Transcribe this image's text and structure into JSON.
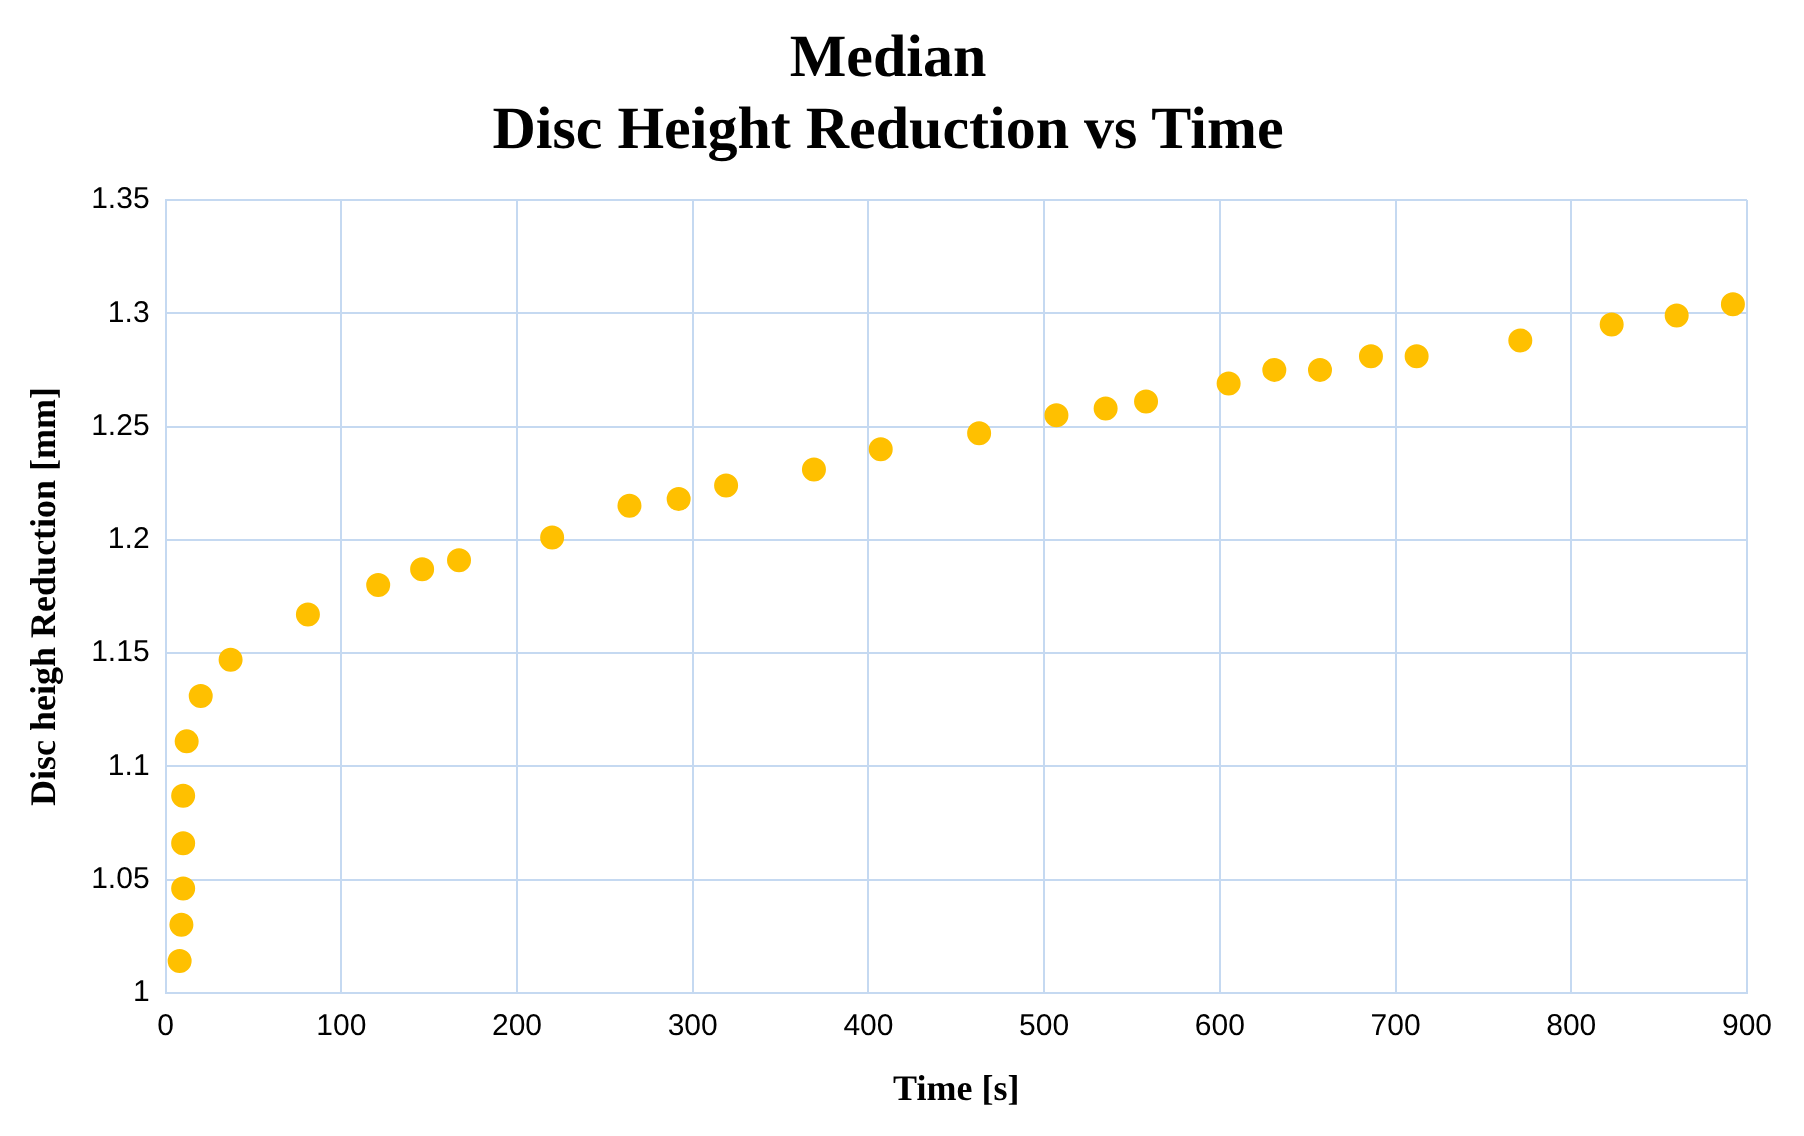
{
  "chart_data": {
    "type": "scatter",
    "title": [
      "Median",
      "Disc Height Reduction vs Time"
    ],
    "xlabel": "Time [s]",
    "ylabel": "Disc heigh Reduction [mm]",
    "x": [
      8,
      9,
      10,
      10,
      10,
      12,
      20,
      37,
      81,
      121,
      146,
      167,
      220,
      264,
      292,
      319,
      369,
      407,
      463,
      507,
      535,
      558,
      605,
      631,
      657,
      686,
      712,
      771,
      823,
      860,
      892
    ],
    "series": [
      {
        "color": "#ffc000",
        "values": [
          1.014,
          1.03,
          1.046,
          1.066,
          1.087,
          1.111,
          1.131,
          1.147,
          1.167,
          1.18,
          1.187,
          1.191,
          1.201,
          1.215,
          1.218,
          1.224,
          1.231,
          1.24,
          1.247,
          1.255,
          1.258,
          1.261,
          1.269,
          1.275,
          1.275,
          1.281,
          1.281,
          1.288,
          1.295,
          1.299,
          1.304
        ]
      }
    ],
    "xlim": [
      0,
      900
    ],
    "xticks": [
      0,
      100,
      200,
      300,
      400,
      500,
      600,
      700,
      800,
      900
    ],
    "ylim": [
      1,
      1.35
    ],
    "yticks": [
      {
        "value": 1,
        "label": "1"
      },
      {
        "value": 1.05,
        "label": "1.05"
      },
      {
        "value": 1.1,
        "label": "1.1"
      },
      {
        "value": 1.15,
        "label": "1.15"
      },
      {
        "value": 1.2,
        "label": "1.2"
      },
      {
        "value": 1.25,
        "label": "1.25"
      },
      {
        "value": 1.3,
        "label": "1.3"
      },
      {
        "value": 1.35,
        "label": "1.35"
      }
    ],
    "grid": true,
    "legend": false,
    "marker": "circle"
  }
}
